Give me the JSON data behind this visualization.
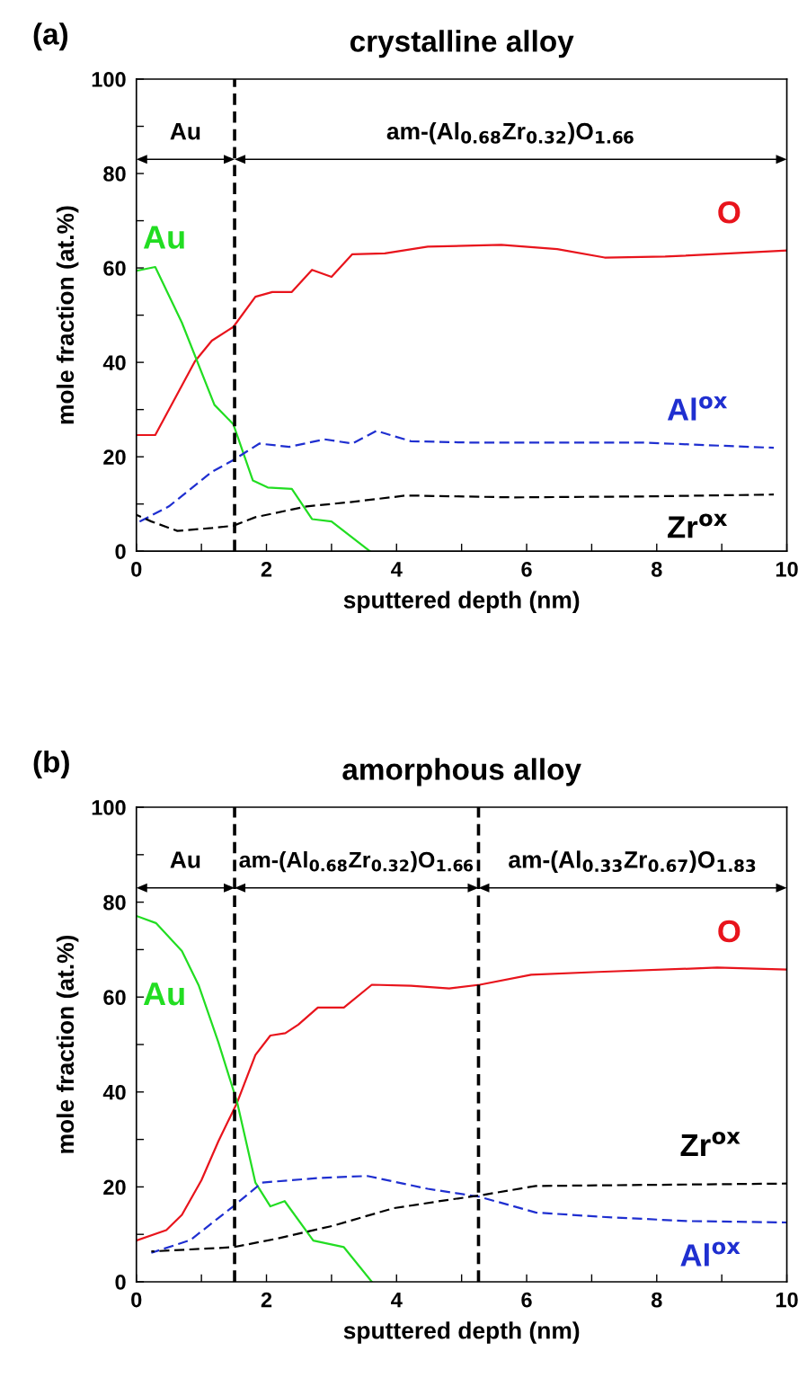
{
  "chart_data": [
    {
      "type": "line",
      "title": "crystalline alloy",
      "xlabel": "sputtered depth (nm)",
      "ylabel": "mole fraction (at.%)",
      "xlim": [
        0,
        10
      ],
      "ylim": [
        0,
        100
      ],
      "xticks": [
        0,
        {
          "value": 1,
          "label": null
        },
        2,
        {
          "value": 3,
          "label": null
        },
        4,
        {
          "value": 5,
          "label": null
        },
        6,
        {
          "value": 7,
          "label": null
        },
        8,
        {
          "value": 9,
          "label": null
        },
        10
      ],
      "yticks": [
        0,
        {
          "value": 10,
          "label": null
        },
        20,
        {
          "value": 30,
          "label": null
        },
        40,
        {
          "value": 50,
          "label": null
        },
        60,
        {
          "value": 70,
          "label": null
        },
        80,
        {
          "value": 90,
          "label": null
        },
        100
      ],
      "grid": false,
      "legend": false,
      "marker": "none",
      "series": [
        {
          "name": "O",
          "color": "#e8141c",
          "line_style": "solid",
          "x": [
            0,
            0.29,
            0.9,
            1.16,
            1.49,
            1.83,
            2.09,
            2.39,
            2.7,
            3.0,
            3.32,
            3.82,
            4.48,
            5.61,
            6.47,
            7.2,
            8.13,
            9.13,
            10
          ],
          "values": [
            24.6,
            24.6,
            40.2,
            44.6,
            47.5,
            53.9,
            54.9,
            54.9,
            59.6,
            58.1,
            62.9,
            63.1,
            64.5,
            64.9,
            64.0,
            62.2,
            62.4,
            63.1,
            63.7
          ]
        },
        {
          "name": "Au",
          "color": "#22dd22",
          "line_style": "solid",
          "x": [
            0,
            0.29,
            0.7,
            1.2,
            1.49,
            1.79,
            2.02,
            2.39,
            2.7,
            3.0,
            3.59
          ],
          "values": [
            59.4,
            60.2,
            48.4,
            31.0,
            26.9,
            15.0,
            13.5,
            13.2,
            6.8,
            6.3,
            0
          ]
        },
        {
          "name": "Al$^{ox}$",
          "color": "#1f2fd0",
          "line_style": "dashed",
          "x": [
            0,
            0.5,
            1.16,
            1.49,
            1.89,
            2.35,
            2.89,
            3.32,
            3.69,
            4.22,
            5.15,
            7.8,
            9.8
          ],
          "values": [
            5.9,
            9.5,
            16.8,
            19.3,
            22.8,
            22.1,
            23.7,
            22.8,
            25.5,
            23.3,
            23.0,
            23.0,
            21.9
          ]
        },
        {
          "name": "Zr$^{ox}$",
          "color": "#000000",
          "line_style": "dashed",
          "x": [
            0,
            0.23,
            0.63,
            1.16,
            1.49,
            1.83,
            2.62,
            3.29,
            4.15,
            5.81,
            7.8,
            9.8
          ],
          "values": [
            7.7,
            6.3,
            4.3,
            4.9,
            5.4,
            7.2,
            9.5,
            10.4,
            11.8,
            11.4,
            11.6,
            12.0
          ]
        }
      ],
      "ref_lines": [
        {
          "axis": "x",
          "value": 1.51,
          "color": "#000000",
          "line_style": "dashed"
        }
      ],
      "annotations": [
        "(a)",
        "Au",
        "am-(Al$_{0.68}$Zr$_{0.32}$)O$_{1.66}$"
      ]
    },
    {
      "type": "line",
      "title": "amorphous alloy",
      "xlabel": "sputtered depth (nm)",
      "ylabel": "mole fraction (at.%)",
      "xlim": [
        0,
        10
      ],
      "ylim": [
        0,
        100
      ],
      "xticks": [
        0,
        {
          "value": 1,
          "label": null
        },
        2,
        {
          "value": 3,
          "label": null
        },
        4,
        {
          "value": 5,
          "label": null
        },
        6,
        {
          "value": 7,
          "label": null
        },
        8,
        {
          "value": 9,
          "label": null
        },
        10
      ],
      "yticks": [
        0,
        {
          "value": 10,
          "label": null
        },
        20,
        {
          "value": 30,
          "label": null
        },
        40,
        {
          "value": 50,
          "label": null
        },
        60,
        {
          "value": 70,
          "label": null
        },
        80,
        {
          "value": 90,
          "label": null
        },
        100
      ],
      "grid": false,
      "legend": false,
      "marker": "none",
      "series": [
        {
          "name": "O",
          "color": "#e8141c",
          "line_style": "solid",
          "x": [
            0,
            0.46,
            0.7,
            1.0,
            1.26,
            1.55,
            1.83,
            2.06,
            2.29,
            2.49,
            2.79,
            3.19,
            3.62,
            4.22,
            4.81,
            5.28,
            6.07,
            7.1,
            8.93,
            10
          ],
          "values": [
            8.7,
            10.9,
            14.1,
            21.4,
            29.6,
            37.8,
            47.8,
            51.9,
            52.4,
            54.2,
            57.8,
            57.8,
            62.6,
            62.4,
            61.8,
            62.6,
            64.7,
            65.3,
            66.2,
            65.8
          ]
        },
        {
          "name": "Au",
          "color": "#22dd22",
          "line_style": "solid",
          "x": [
            0,
            0.3,
            0.7,
            0.96,
            1.26,
            1.55,
            1.83,
            2.06,
            2.28,
            2.72,
            3.19,
            3.62
          ],
          "values": [
            77.1,
            75.6,
            69.7,
            62.4,
            50.5,
            37.8,
            20.9,
            15.9,
            17.0,
            8.7,
            7.3,
            0
          ]
        },
        {
          "name": "Al$^{ox}$",
          "color": "#1f2fd0",
          "line_style": "dashed",
          "x": [
            0.23,
            0.83,
            1.49,
            1.93,
            2.82,
            3.55,
            4.48,
            5.28,
            6.14,
            7.14,
            8.47,
            10
          ],
          "values": [
            6.1,
            8.8,
            15.9,
            20.9,
            21.9,
            22.3,
            19.6,
            17.9,
            14.6,
            13.7,
            12.8,
            12.5
          ]
        },
        {
          "name": "Zr$^{ox}$",
          "color": "#000000",
          "line_style": "dashed",
          "x": [
            0.23,
            1.49,
            2.16,
            3.02,
            3.95,
            4.81,
            5.28,
            6.14,
            10
          ],
          "values": [
            6.4,
            7.3,
            9.1,
            11.8,
            15.5,
            17.3,
            18.2,
            20.2,
            20.7
          ]
        }
      ],
      "ref_lines": [
        {
          "axis": "x",
          "value": 1.51,
          "color": "#000000",
          "line_style": "dashed"
        },
        {
          "axis": "x",
          "value": 5.26,
          "color": "#000000",
          "line_style": "dashed"
        }
      ],
      "annotations": [
        "(b)",
        "Au",
        "am-(Al$_{0.68}$Zr$_{0.32}$)O$_{1.66}$",
        "am-(Al$_{0.33}$Zr$_{0.67}$)O$_{1.83}$"
      ]
    }
  ]
}
